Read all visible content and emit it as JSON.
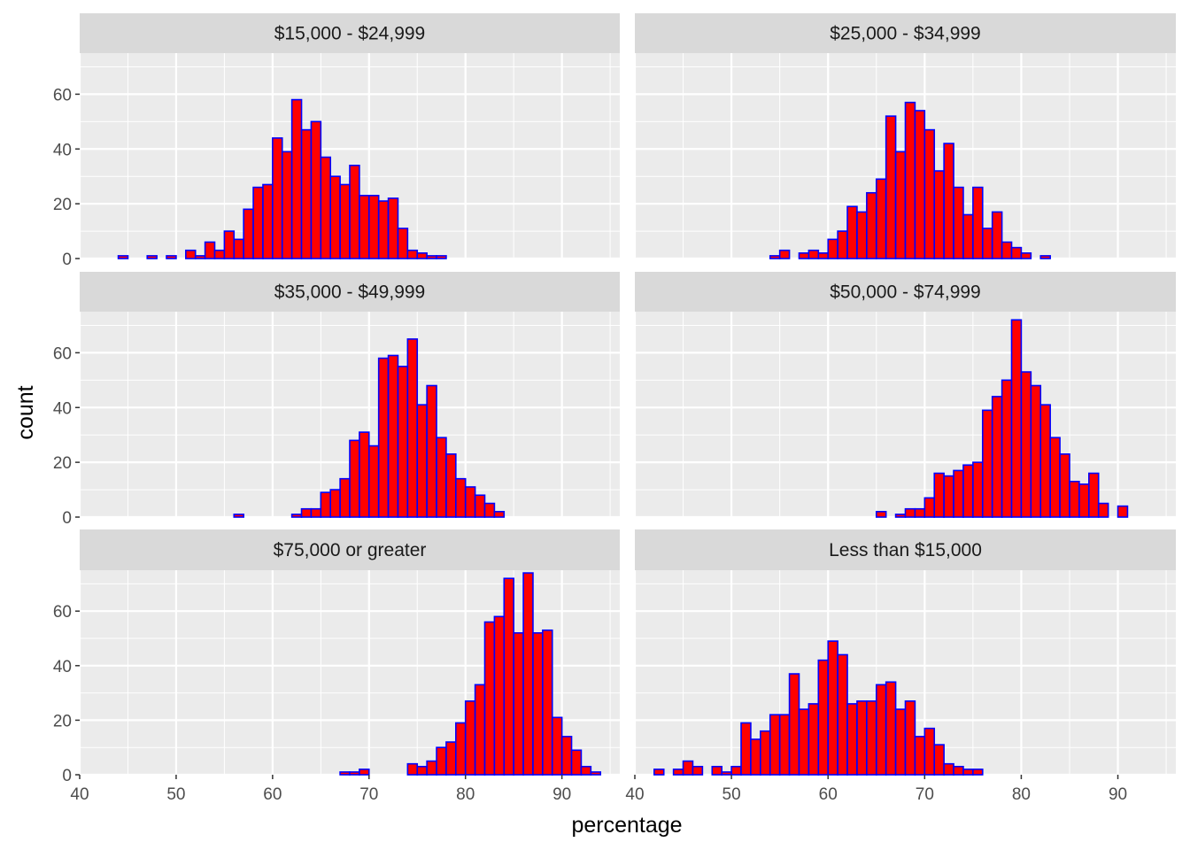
{
  "chart_data": {
    "type": "bar",
    "subtype": "faceted-histogram",
    "xlabel": "percentage",
    "ylabel": "count",
    "xlim": [
      40,
      96
    ],
    "ylim": [
      0,
      75
    ],
    "x_ticks": [
      40,
      50,
      60,
      70,
      80,
      90
    ],
    "y_ticks": [
      0,
      20,
      40,
      60
    ],
    "grid": true,
    "layout": "3 rows x 2 columns",
    "bar_fill": "#FF0000",
    "bar_outline": "#0000FF",
    "panel_background": "#EBEBEB",
    "strip_background": "#D9D9D9",
    "bin_start": 42,
    "bin_width": 1,
    "facets": [
      {
        "label": "$15,000 - $24,999",
        "counts": [
          0,
          0,
          1,
          0,
          0,
          1,
          0,
          1,
          0,
          3,
          1,
          6,
          3,
          10,
          7,
          18,
          26,
          27,
          44,
          39,
          58,
          47,
          50,
          37,
          30,
          27,
          34,
          23,
          23,
          21,
          22,
          11,
          3,
          2,
          1,
          1,
          0,
          0,
          0,
          0,
          0,
          0,
          0,
          0,
          0,
          0,
          0,
          0,
          0,
          0,
          0,
          0,
          0
        ]
      },
      {
        "label": "$25,000 - $34,999",
        "counts": [
          0,
          0,
          0,
          0,
          0,
          0,
          0,
          0,
          0,
          0,
          0,
          0,
          1,
          3,
          0,
          2,
          3,
          2,
          7,
          10,
          19,
          17,
          24,
          29,
          52,
          39,
          57,
          54,
          47,
          32,
          42,
          26,
          16,
          26,
          11,
          17,
          6,
          4,
          2,
          0,
          1,
          0,
          0,
          0,
          0,
          0,
          0,
          0,
          0,
          0,
          0,
          0,
          0
        ]
      },
      {
        "label": "$35,000 - $49,999",
        "counts": [
          0,
          0,
          0,
          0,
          0,
          0,
          0,
          0,
          0,
          0,
          0,
          0,
          0,
          0,
          1,
          0,
          0,
          0,
          0,
          0,
          1,
          3,
          3,
          9,
          10,
          14,
          28,
          31,
          26,
          58,
          59,
          55,
          65,
          41,
          48,
          29,
          23,
          14,
          11,
          8,
          5,
          2,
          0,
          0,
          0,
          0,
          0,
          0,
          0,
          0,
          0,
          0,
          0
        ]
      },
      {
        "label": "$50,000 - $74,999",
        "counts": [
          0,
          0,
          0,
          0,
          0,
          0,
          0,
          0,
          0,
          0,
          0,
          0,
          0,
          0,
          0,
          0,
          0,
          0,
          0,
          0,
          0,
          0,
          0,
          2,
          0,
          1,
          3,
          3,
          7,
          16,
          15,
          17,
          19,
          20,
          39,
          44,
          50,
          72,
          53,
          48,
          41,
          29,
          23,
          13,
          12,
          16,
          5,
          0,
          4,
          0,
          0,
          0,
          0
        ]
      },
      {
        "label": "$75,000 or greater",
        "counts": [
          0,
          0,
          0,
          0,
          0,
          0,
          0,
          0,
          0,
          0,
          0,
          0,
          0,
          0,
          0,
          0,
          0,
          0,
          0,
          0,
          0,
          0,
          0,
          0,
          0,
          1,
          1,
          2,
          0,
          0,
          0,
          0,
          4,
          3,
          5,
          10,
          12,
          19,
          27,
          33,
          56,
          58,
          72,
          52,
          74,
          52,
          53,
          21,
          14,
          9,
          3,
          1,
          0
        ]
      },
      {
        "label": "Less than $15,000",
        "counts": [
          2,
          0,
          2,
          5,
          3,
          0,
          3,
          1,
          3,
          19,
          13,
          16,
          22,
          22,
          37,
          24,
          26,
          42,
          49,
          44,
          26,
          27,
          27,
          33,
          34,
          24,
          27,
          14,
          17,
          11,
          4,
          3,
          2,
          2,
          0,
          0,
          0,
          0,
          0,
          0,
          0,
          0,
          0,
          0,
          0,
          0,
          0,
          0,
          0,
          0,
          0,
          0,
          0
        ]
      }
    ]
  }
}
